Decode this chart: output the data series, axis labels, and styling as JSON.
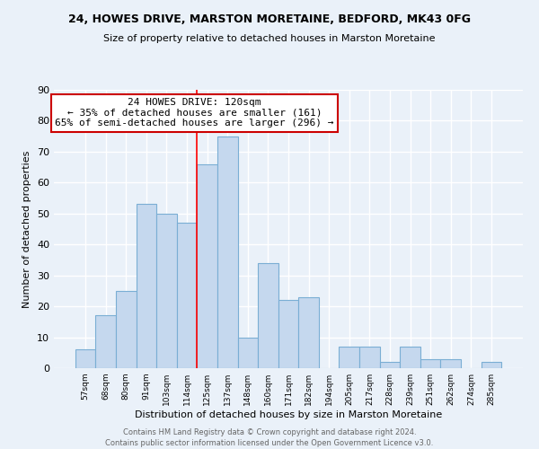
{
  "title1": "24, HOWES DRIVE, MARSTON MORETAINE, BEDFORD, MK43 0FG",
  "title2": "Size of property relative to detached houses in Marston Moretaine",
  "xlabel": "Distribution of detached houses by size in Marston Moretaine",
  "ylabel": "Number of detached properties",
  "bin_labels": [
    "57sqm",
    "68sqm",
    "80sqm",
    "91sqm",
    "103sqm",
    "114sqm",
    "125sqm",
    "137sqm",
    "148sqm",
    "160sqm",
    "171sqm",
    "182sqm",
    "194sqm",
    "205sqm",
    "217sqm",
    "228sqm",
    "239sqm",
    "251sqm",
    "262sqm",
    "274sqm",
    "285sqm"
  ],
  "values": [
    6,
    17,
    25,
    53,
    50,
    47,
    66,
    75,
    10,
    34,
    22,
    23,
    0,
    7,
    7,
    2,
    7,
    3,
    3,
    0,
    2
  ],
  "bar_color": "#c5d8ee",
  "bar_edge_color": "#7aaed4",
  "annotation_title": "24 HOWES DRIVE: 120sqm",
  "annotation_line1": "← 35% of detached houses are smaller (161)",
  "annotation_line2": "65% of semi-detached houses are larger (296) →",
  "annotation_box_color": "#ffffff",
  "annotation_box_edge_color": "#cc0000",
  "ylim": [
    0,
    90
  ],
  "yticks": [
    0,
    10,
    20,
    30,
    40,
    50,
    60,
    70,
    80,
    90
  ],
  "red_line_index": 6,
  "footer1": "Contains HM Land Registry data © Crown copyright and database right 2024.",
  "footer2": "Contains public sector information licensed under the Open Government Licence v3.0.",
  "bg_color": "#eaf1f9",
  "grid_color": "#ffffff"
}
